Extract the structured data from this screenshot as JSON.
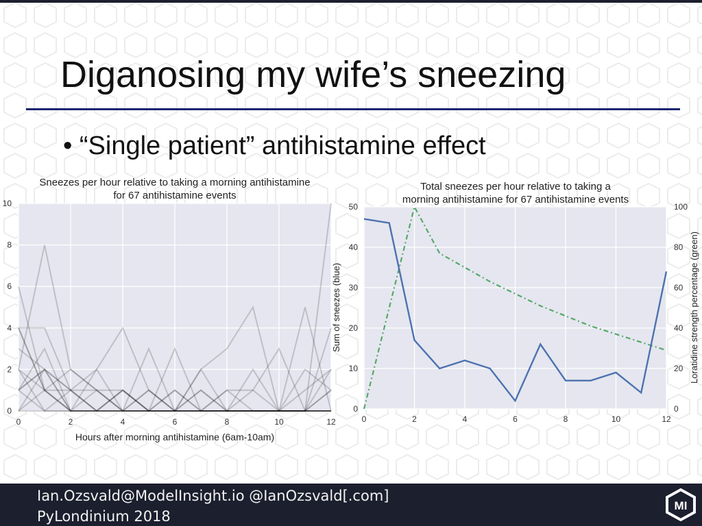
{
  "slide": {
    "title": "Diganosing my wife’s sneezing",
    "bullet": "“Single patient” antihistamine effect",
    "footer_line1": "Ian.Ozsvald@ModelInsight.io @IanOzsvald[.com]",
    "footer_line2": "PyLondinium 2018",
    "logo_text": "MI",
    "background_pattern_text": "MI"
  },
  "colors": {
    "plot_bg": "#e5e6ef",
    "blue": "#4c72b0",
    "green": "#55a868",
    "footer": "#1c1f2e",
    "rule": "#1c2570"
  },
  "chart_data": [
    {
      "type": "line",
      "title_line1": "Sneezes per hour relative to taking a morning antihistamine",
      "title_line2": "for 67 antihistamine events",
      "xlabel": "Hours after morning antihistamine (6am-10am)",
      "ylabel": "",
      "xlim": [
        0,
        12
      ],
      "ylim": [
        0,
        10
      ],
      "x_ticks": [
        0,
        2,
        4,
        6,
        8,
        10,
        12
      ],
      "y_ticks": [
        0,
        2,
        4,
        6,
        8,
        10
      ],
      "grid": true,
      "x": [
        0,
        1,
        2,
        3,
        4,
        5,
        6,
        7,
        8,
        9,
        10,
        11,
        12
      ],
      "series": [
        {
          "values": [
            6,
            1,
            1,
            0,
            0,
            0,
            0,
            0,
            0,
            0,
            0,
            0,
            10
          ]
        },
        {
          "values": [
            2,
            8,
            2,
            1,
            1,
            0,
            0,
            0,
            0,
            0,
            0,
            0,
            0
          ]
        },
        {
          "values": [
            4,
            4,
            1,
            0,
            0,
            0,
            0,
            2,
            3,
            5,
            0,
            0,
            4
          ]
        },
        {
          "values": [
            3,
            2,
            1,
            2,
            4,
            1,
            0,
            0,
            0,
            1,
            3,
            0,
            0
          ]
        },
        {
          "values": [
            4,
            1,
            0,
            0,
            0,
            3,
            0,
            0,
            0,
            0,
            0,
            5,
            0
          ]
        },
        {
          "values": [
            1,
            3,
            0,
            2,
            0,
            0,
            3,
            0,
            0,
            0,
            0,
            0,
            2
          ]
        },
        {
          "values": [
            2,
            1,
            2,
            1,
            0,
            1,
            0,
            1,
            0,
            2,
            0,
            1,
            2
          ]
        },
        {
          "values": [
            1,
            2,
            1,
            0,
            1,
            0,
            1,
            0,
            1,
            0,
            0,
            2,
            1
          ]
        },
        {
          "values": [
            2,
            0,
            1,
            1,
            0,
            0,
            0,
            2,
            0,
            0,
            0,
            0,
            1
          ]
        },
        {
          "values": [
            1,
            2,
            0,
            0,
            1,
            0,
            0,
            0,
            1,
            1,
            0,
            0,
            0
          ]
        },
        {
          "values": [
            0,
            2,
            0,
            1,
            0,
            0,
            1,
            0,
            0,
            0,
            0,
            0,
            0
          ]
        },
        {
          "values": [
            1,
            0,
            0,
            0,
            0,
            1,
            0,
            1,
            0,
            0,
            0,
            0,
            1
          ]
        },
        {
          "values": [
            4,
            1,
            0,
            0,
            0,
            0,
            0,
            0,
            0,
            0,
            0,
            0,
            0
          ]
        },
        {
          "values": [
            0,
            1,
            0,
            0,
            1,
            0,
            0,
            0,
            0,
            0,
            0,
            0,
            0
          ]
        },
        {
          "values": [
            0,
            0,
            0,
            0,
            0,
            0,
            0,
            0,
            0,
            0,
            0,
            0,
            0
          ]
        }
      ]
    },
    {
      "type": "line",
      "title_line1": "Total sneezes per hour relative to taking a",
      "title_line2": "morning antihistamine for 67 antihistamine events",
      "ylabel_left": "Sum of sneezes (blue)",
      "ylabel_right": "Loratidine strength percentage (green)",
      "xlim": [
        0,
        12
      ],
      "ylim_left": [
        0,
        50
      ],
      "ylim_right": [
        0,
        100
      ],
      "x_ticks": [
        0,
        2,
        4,
        6,
        8,
        10,
        12
      ],
      "y_ticks_left": [
        0,
        10,
        20,
        30,
        40,
        50
      ],
      "y_ticks_right": [
        0,
        20,
        40,
        60,
        80,
        100
      ],
      "grid": true,
      "x": [
        0,
        1,
        2,
        3,
        4,
        5,
        6,
        7,
        8,
        9,
        10,
        11,
        12
      ],
      "sneezes": [
        47,
        46,
        17,
        10,
        12,
        10,
        2,
        16,
        7,
        7,
        9,
        4,
        34
      ],
      "loratidine": [
        0,
        50,
        100,
        77,
        70,
        63,
        57,
        51,
        46,
        41,
        37,
        33,
        29
      ]
    }
  ]
}
